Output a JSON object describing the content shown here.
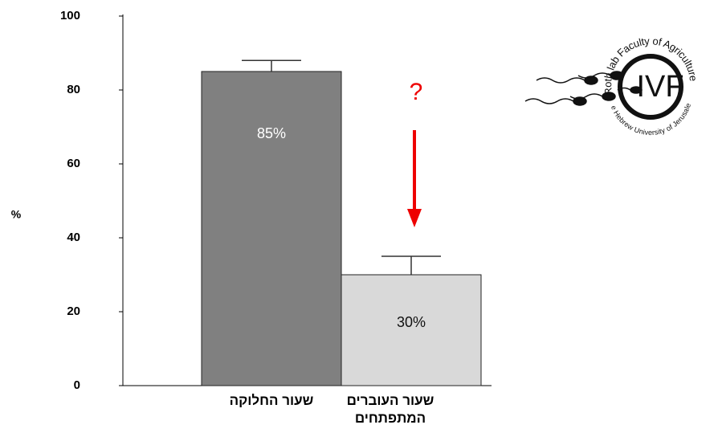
{
  "chart_data": {
    "type": "bar",
    "categories": [
      "שעור החלוקה",
      "שעור העוברים המתפתחים"
    ],
    "values": [
      85,
      30
    ],
    "value_labels": [
      "85%",
      "30%"
    ],
    "errors": [
      3,
      5
    ],
    "colors": [
      "#808080",
      "#d9d9d9"
    ],
    "y_label": "%",
    "ylim": [
      0,
      100
    ],
    "yticks": [
      0,
      20,
      40,
      60,
      80,
      100
    ],
    "annotation": "?",
    "logo": {
      "center_text": "IVF",
      "top_text": "Roth lab Faculty of Agriculture",
      "bottom_text": "The Hebrew University of Jerusalem"
    }
  }
}
